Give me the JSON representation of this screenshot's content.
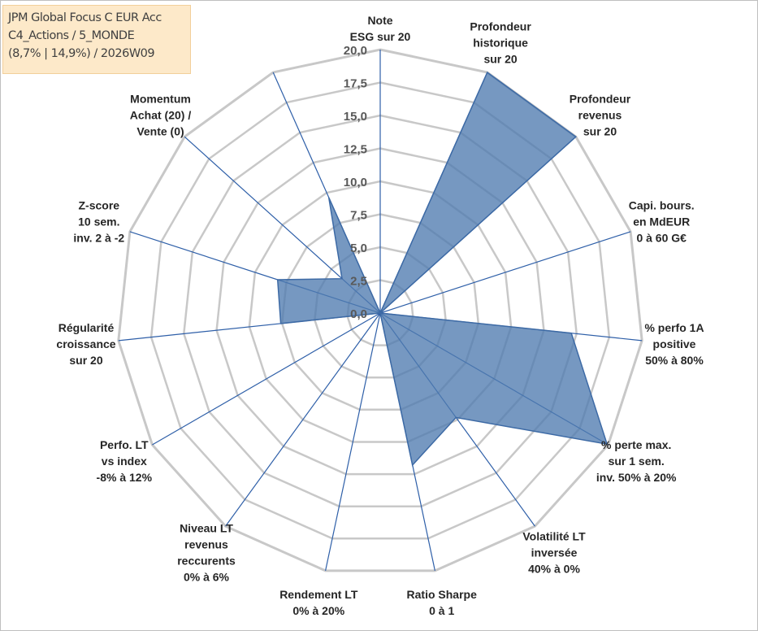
{
  "header": {
    "lines": [
      "JPM Global Focus C EUR Acc",
      "C4_Actions / 5_MONDE",
      "(8,7% | 14,9%) / 2026W09"
    ]
  },
  "colors": {
    "fill": "#4f7bb0",
    "stroke": "#3d6aa5",
    "grid": "#c8c8c8",
    "spoke": "#2e5fa8"
  },
  "chart_data": {
    "type": "radar",
    "rmin": 0,
    "rmax": 20,
    "tick_step": 2.5,
    "tick_labels": [
      "0,0",
      "2,5",
      "5,0",
      "7,5",
      "10,0",
      "12,5",
      "15,0",
      "17,5",
      "20,0"
    ],
    "grid": true,
    "axes": [
      {
        "label": [
          "Note",
          "ESG sur 20"
        ],
        "value": 0
      },
      {
        "label": [
          "Profondeur",
          "historique",
          "sur 20"
        ],
        "value": 20
      },
      {
        "label": [
          "Profondeur",
          "revenus",
          "sur 20"
        ],
        "value": 20
      },
      {
        "label": [
          "Capi. bours.",
          "en MdEUR",
          "0 à 60 G€"
        ],
        "value": 0
      },
      {
        "label": [
          "% perfo 1A",
          "positive",
          "50% à 80%"
        ],
        "value": 14.6
      },
      {
        "label": [
          "% perte max.",
          "sur 1 sem.",
          "inv. 50% à 20%"
        ],
        "value": 19.9
      },
      {
        "label": [
          "Volatilité LT",
          "inversée",
          "40% à 0%"
        ],
        "value": 9.8
      },
      {
        "label": [
          "Ratio Sharpe",
          "0 à 1"
        ],
        "value": 11.8
      },
      {
        "label": [
          "Rendement LT",
          "0% à 20%"
        ],
        "value": 0
      },
      {
        "label": [
          "Niveau LT",
          "revenus",
          "reccurents",
          "0% à 6%"
        ],
        "value": 0
      },
      {
        "label": [
          "Perfo. LT",
          "vs index",
          "-8% à 12%"
        ],
        "value": 0
      },
      {
        "label": [
          "Régularité",
          "croissance",
          "sur 20"
        ],
        "value": 7.6
      },
      {
        "label": [
          "Z-score",
          "10 sem.",
          "inv. 2 à -2"
        ],
        "value": 8.2
      },
      {
        "label": [
          "Momentum",
          "Achat (20) /",
          "Vente (0)"
        ],
        "value": 3.9
      },
      {
        "label": [],
        "value": 9.6
      }
    ]
  }
}
